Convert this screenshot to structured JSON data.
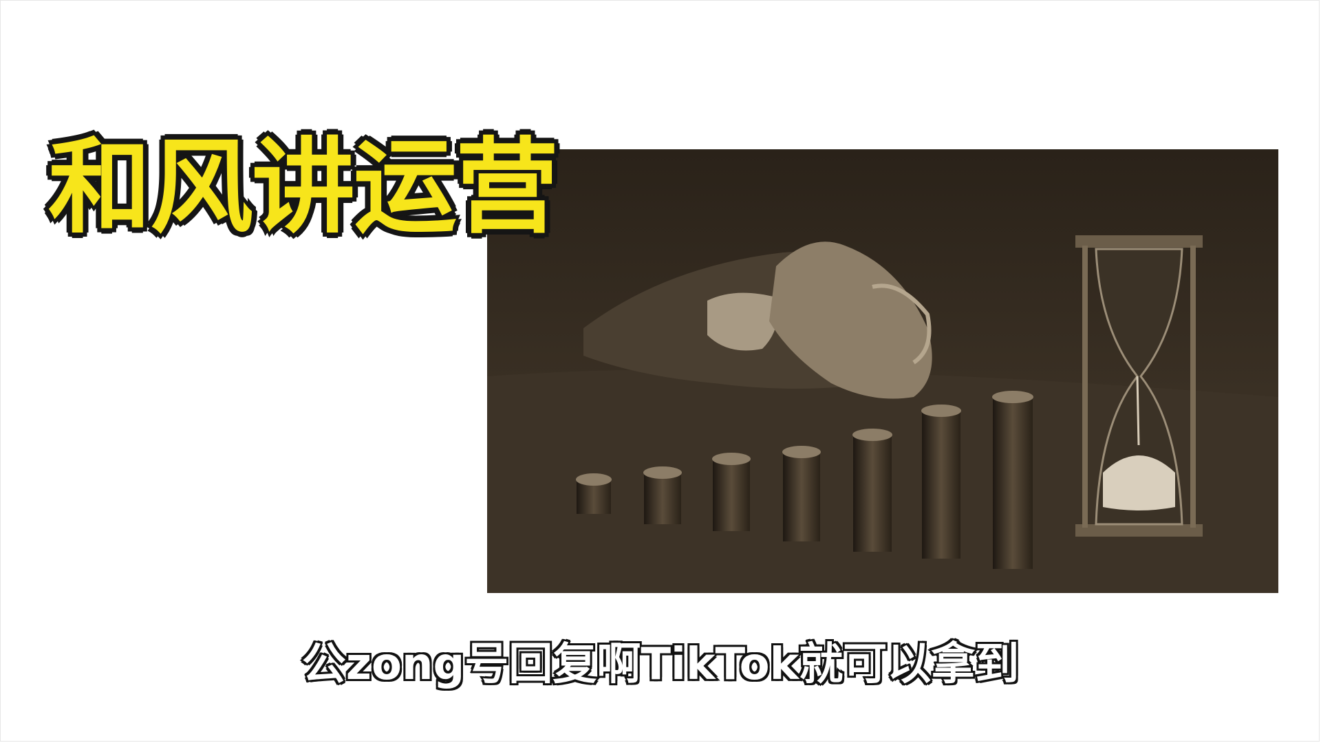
{
  "title": "和风讲运营",
  "subtitle": "公zong号回复啊TikTok就可以拿到",
  "colors": {
    "title_fill": "#f7e51b",
    "title_outline": "#151515",
    "subtitle_fill": "#ffffff",
    "subtitle_outline": "#111111",
    "photo_dark": "#2f271d",
    "photo_light": "#a0917a"
  },
  "photo": {
    "subject": "hand-stacking-coins-hourglass"
  }
}
